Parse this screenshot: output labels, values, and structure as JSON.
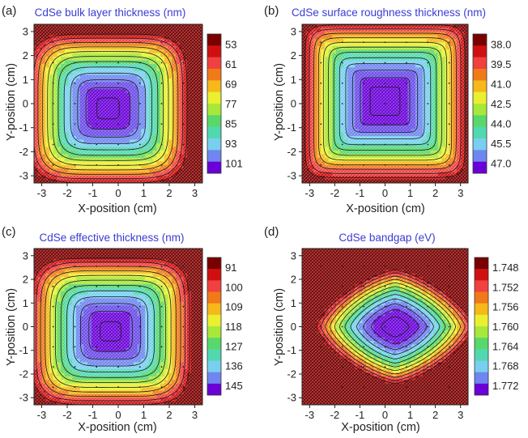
{
  "figure": {
    "panels": [
      {
        "letter": "(a)",
        "title": "CdSe bulk layer thickness (nm)"
      },
      {
        "letter": "(b)",
        "title": "CdSe surface roughness thickness (nm)"
      },
      {
        "letter": "(c)",
        "title": "CdSe effective thickness (nm)"
      },
      {
        "letter": "(d)",
        "title": "CdSe bandgap (eV)"
      }
    ],
    "title_color": "#3b3bd6"
  },
  "chart_data": [
    {
      "type": "heatmap",
      "title": "CdSe bulk layer thickness (nm)",
      "xlabel": "X-position (cm)",
      "ylabel": "Y-position (cm)",
      "xlim": [
        -3.3,
        3.3
      ],
      "ylim": [
        -3.3,
        3.3
      ],
      "xticks": [
        "-3",
        "-2",
        "-1",
        "0",
        "1",
        "2",
        "3"
      ],
      "yticks": [
        "-3",
        "-2",
        "-1",
        "0",
        "1",
        "2",
        "3"
      ],
      "colorbar": {
        "labels": [
          "53",
          "61",
          "69",
          "77",
          "85",
          "93",
          "101"
        ],
        "min": 53,
        "max": 101,
        "reversed": true
      },
      "field": {
        "kind": "radial",
        "center": [
          -0.4,
          -0.2
        ],
        "peak": 103,
        "edge": 52,
        "exponent": 5,
        "aspect": 1.0
      },
      "contour_levels": [
        57,
        61,
        65,
        69,
        73,
        77,
        81,
        85,
        89,
        93,
        97,
        101
      ]
    },
    {
      "type": "heatmap",
      "title": "CdSe surface roughness thickness (nm)",
      "xlabel": "X-position (cm)",
      "ylabel": "Y-position (cm)",
      "xlim": [
        -3.3,
        3.3
      ],
      "ylim": [
        -3.3,
        3.3
      ],
      "xticks": [
        "-3",
        "-2",
        "-1",
        "0",
        "1",
        "2",
        "3"
      ],
      "yticks": [
        "-3",
        "-2",
        "-1",
        "0",
        "1",
        "2",
        "3"
      ],
      "colorbar": {
        "labels": [
          "38.0",
          "39.5",
          "41.0",
          "42.5",
          "44.0",
          "45.5",
          "47.0"
        ],
        "min": 38.0,
        "max": 47.0,
        "reversed": true
      },
      "field": {
        "kind": "radial",
        "center": [
          0.0,
          0.1
        ],
        "peak": 47.6,
        "edge": 38.2,
        "exponent": 10,
        "aspect": 1.0
      },
      "contour_levels": [
        38.75,
        39.5,
        40.25,
        41.0,
        41.75,
        42.5,
        43.25,
        44.0,
        44.75,
        45.5,
        46.25,
        47.0
      ]
    },
    {
      "type": "heatmap",
      "title": "CdSe effective thickness (nm)",
      "xlabel": "X-position (cm)",
      "ylabel": "Y-position (cm)",
      "xlim": [
        -3.3,
        3.3
      ],
      "ylim": [
        -3.3,
        3.3
      ],
      "xticks": [
        "-3",
        "-2",
        "-1",
        "0",
        "1",
        "2",
        "3"
      ],
      "yticks": [
        "-3",
        "-2",
        "-1",
        "0",
        "1",
        "2",
        "3"
      ],
      "colorbar": {
        "labels": [
          "91",
          "100",
          "109",
          "118",
          "127",
          "136",
          "145"
        ],
        "min": 91,
        "max": 145,
        "reversed": true
      },
      "field": {
        "kind": "radial",
        "center": [
          -0.3,
          -0.2
        ],
        "peak": 147,
        "edge": 90,
        "exponent": 5,
        "aspect": 1.0
      },
      "contour_levels": [
        95.5,
        100,
        104.5,
        109,
        113.5,
        118,
        122.5,
        127,
        131.5,
        136,
        140.5,
        145
      ]
    },
    {
      "type": "heatmap",
      "title": "CdSe bandgap (eV)",
      "xlabel": "X-position (cm)",
      "ylabel": "Y-position (cm)",
      "xlim": [
        -3.3,
        3.3
      ],
      "ylim": [
        -3.3,
        3.3
      ],
      "xticks": [
        "-3",
        "-2",
        "-1",
        "0",
        "1",
        "2",
        "3"
      ],
      "yticks": [
        "-3",
        "-2",
        "-1",
        "0",
        "1",
        "2",
        "3"
      ],
      "colorbar": {
        "labels": [
          "1.748",
          "1.752",
          "1.756",
          "1.760",
          "1.764",
          "1.768",
          "1.772"
        ],
        "min": 1.748,
        "max": 1.772,
        "reversed": true
      },
      "field": {
        "kind": "radial",
        "center": [
          0.4,
          0.0
        ],
        "peak": 1.7735,
        "edge": 1.7478,
        "exponent": 1.4,
        "aspect": 1.3
      },
      "contour_levels": [
        1.75,
        1.752,
        1.754,
        1.756,
        1.758,
        1.76,
        1.762,
        1.764,
        1.766,
        1.768,
        1.77,
        1.772
      ]
    }
  ],
  "palette": [
    "#7a0000",
    "#d01010",
    "#f04040",
    "#f07a18",
    "#f6b81a",
    "#eaf030",
    "#a8e83a",
    "#58d86a",
    "#52d8b0",
    "#78cff0",
    "#6f86f0",
    "#6a4ae8",
    "#6a00d8"
  ]
}
